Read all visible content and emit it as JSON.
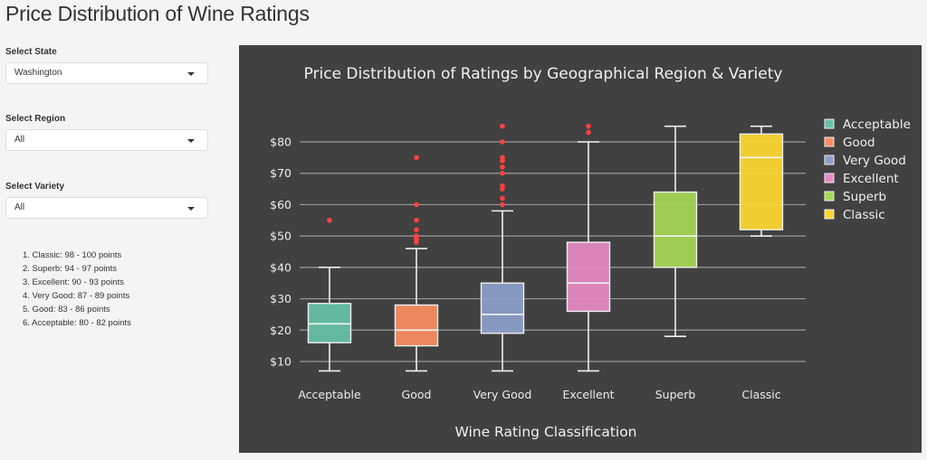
{
  "page": {
    "title": "Price Distribution of Wine Ratings"
  },
  "filters": {
    "state": {
      "label": "Select State",
      "value": "Washington"
    },
    "region": {
      "label": "Select Region",
      "value": "All"
    },
    "variety": {
      "label": "Select Variety",
      "value": "All"
    }
  },
  "rating_scale": [
    "1. Classic: 98 - 100 points",
    "2. Superb: 94 - 97 points",
    "3. Excellent: 90 - 93 points",
    "4. Very Good: 87 - 89 points",
    "5. Good: 83 - 86 points",
    "6. Acceptable: 80 - 82 points"
  ],
  "colors": {
    "panel_bg": "#414141",
    "outlier": "#ff4040",
    "Acceptable": "#66c2a5",
    "Good": "#fc8d62",
    "Very Good": "#8da0cb",
    "Excellent": "#e78ac3",
    "Superb": "#a6d854",
    "Classic": "#ffd92f"
  },
  "chart_data": {
    "type": "box",
    "title": "Price Distribution of Ratings by Geographical Region & Variety",
    "xlabel": "Wine Rating Classification",
    "ylabel": "",
    "categories": [
      "Acceptable",
      "Good",
      "Very Good",
      "Excellent",
      "Superb",
      "Classic"
    ],
    "yticks": [
      "$10",
      "$20",
      "$30",
      "$40",
      "$50",
      "$60",
      "$70",
      "$80"
    ],
    "ytick_values": [
      10,
      20,
      30,
      40,
      50,
      60,
      70,
      80
    ],
    "ylim": [
      5,
      87
    ],
    "grid": true,
    "legend_position": "right",
    "legend": [
      "Acceptable",
      "Good",
      "Very Good",
      "Excellent",
      "Superb",
      "Classic"
    ],
    "series": [
      {
        "name": "Acceptable",
        "min": 7,
        "q1": 16,
        "median": 22,
        "q3": 28.5,
        "max": 40,
        "outliers": [
          55
        ]
      },
      {
        "name": "Good",
        "min": 7,
        "q1": 15,
        "median": 20,
        "q3": 28,
        "max": 46,
        "outliers": [
          48,
          49,
          50,
          52,
          55,
          60,
          75
        ]
      },
      {
        "name": "Very Good",
        "min": 7,
        "q1": 19,
        "median": 25,
        "q3": 35,
        "max": 58,
        "outliers": [
          60,
          62,
          65,
          66,
          70,
          72,
          74,
          75,
          80,
          85
        ]
      },
      {
        "name": "Excellent",
        "min": 7,
        "q1": 26,
        "median": 35,
        "q3": 48,
        "max": 80,
        "outliers": [
          83,
          85
        ]
      },
      {
        "name": "Superb",
        "min": 18,
        "q1": 40,
        "median": 50,
        "q3": 64,
        "max": 85,
        "outliers": []
      },
      {
        "name": "Classic",
        "min": 50,
        "q1": 52,
        "median": 75,
        "q3": 82.5,
        "max": 85,
        "outliers": []
      }
    ]
  }
}
